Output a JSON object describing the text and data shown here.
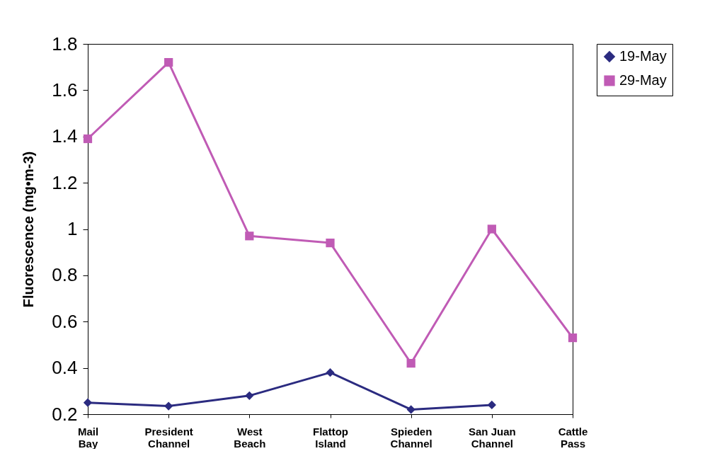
{
  "chart_data": {
    "type": "line",
    "ylabel": "Fluorescence (mg•m-3)",
    "categories": [
      "Mail Bay",
      "President Channel",
      "West Beach",
      "Flattop Island",
      "Spieden Channel",
      "San Juan Channel",
      "Cattle Pass"
    ],
    "series": [
      {
        "name": "19-May",
        "color": "#2b2b80",
        "marker": "diamond",
        "values": [
          0.25,
          0.235,
          0.28,
          0.38,
          0.22,
          0.24,
          null
        ]
      },
      {
        "name": "29-May",
        "color": "#c05bb5",
        "marker": "square",
        "values": [
          1.39,
          1.72,
          0.97,
          0.94,
          0.42,
          1.0,
          0.53
        ]
      }
    ],
    "ylim": [
      0.2,
      1.8
    ],
    "yticks": [
      0.2,
      0.4,
      0.6,
      0.8,
      1,
      1.2,
      1.4,
      1.6,
      1.8
    ],
    "grid": false,
    "legend": "right",
    "line_style": "solid"
  }
}
